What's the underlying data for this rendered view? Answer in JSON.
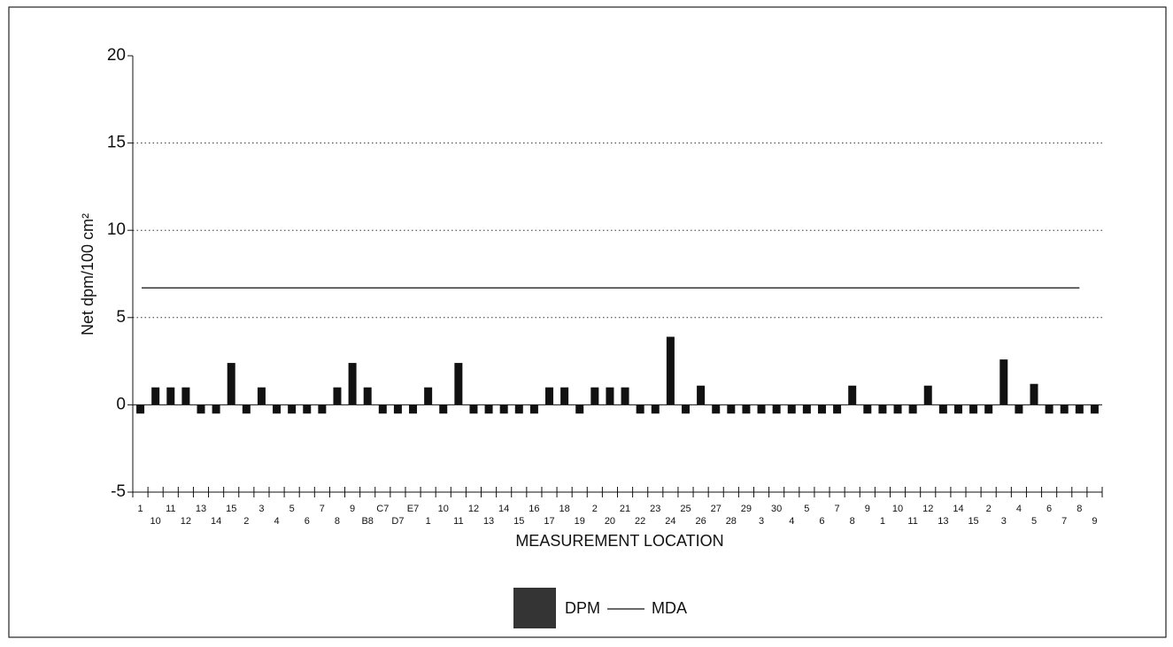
{
  "chart_data": {
    "type": "bar",
    "y_label": "Net dpm/100 cm²",
    "x_label": "MEASUREMENT LOCATION",
    "categories": [
      "1",
      "10",
      "11",
      "12",
      "13",
      "14",
      "15",
      "2",
      "3",
      "4",
      "5",
      "6",
      "7",
      "8",
      "9",
      "B8",
      "C7",
      "D7",
      "E7",
      "1",
      "10",
      "11",
      "12",
      "13",
      "14",
      "15",
      "16",
      "17",
      "18",
      "19",
      "2",
      "20",
      "21",
      "22",
      "23",
      "24",
      "25",
      "26",
      "27",
      "28",
      "29",
      "3",
      "30",
      "4",
      "5",
      "6",
      "7",
      "8",
      "9",
      "1",
      "10",
      "11",
      "12",
      "13",
      "14",
      "15",
      "2",
      "3",
      "4",
      "5",
      "6",
      "7",
      "8",
      "9"
    ],
    "series": [
      {
        "name": "DPM",
        "type": "bar",
        "color": "#111111",
        "values": [
          -0.5,
          1,
          1,
          1,
          -0.5,
          -0.5,
          2.4,
          -0.5,
          1,
          -0.5,
          -0.5,
          -0.5,
          -0.5,
          1,
          2.4,
          1,
          -0.5,
          -0.5,
          -0.5,
          1,
          -0.5,
          2.4,
          -0.5,
          -0.5,
          -0.5,
          -0.5,
          -0.5,
          1,
          1,
          -0.5,
          1,
          1,
          1,
          -0.5,
          -0.5,
          3.9,
          -0.5,
          1.1,
          -0.5,
          -0.5,
          -0.5,
          -0.5,
          -0.5,
          -0.5,
          -0.5,
          -0.5,
          -0.5,
          1.1,
          -0.5,
          -0.5,
          -0.5,
          -0.5,
          1.1,
          -0.5,
          -0.5,
          -0.5,
          -0.5,
          2.6,
          -0.5,
          1.2,
          -0.5,
          -0.5,
          -0.5,
          -0.5
        ]
      },
      {
        "name": "MDA",
        "type": "line",
        "color": "#111111",
        "values": [
          6.7,
          6.7,
          6.7,
          6.7,
          6.7,
          6.7,
          6.7,
          6.7,
          6.7,
          6.7,
          6.7,
          6.7,
          6.7,
          6.7,
          6.7,
          6.7,
          6.7,
          6.7,
          6.7,
          6.7,
          6.7,
          6.7,
          6.7,
          6.7,
          6.7,
          6.7,
          6.7,
          6.7,
          6.7,
          6.7,
          6.7,
          6.7,
          6.7,
          6.7,
          6.7,
          6.7,
          6.7,
          6.7,
          6.7,
          6.7,
          6.7,
          6.7,
          6.7,
          6.7,
          6.7,
          6.7,
          6.7,
          6.7,
          6.7,
          6.7,
          6.7,
          6.7,
          6.7,
          6.7,
          6.7,
          6.7,
          6.7,
          6.7,
          6.7,
          6.7,
          6.7,
          6.7,
          6.7,
          6.7
        ]
      }
    ],
    "ylim": [
      -5,
      20
    ],
    "yticks": [
      -5,
      0,
      5,
      10,
      15,
      20
    ],
    "grid": true,
    "legend": "bottom"
  }
}
